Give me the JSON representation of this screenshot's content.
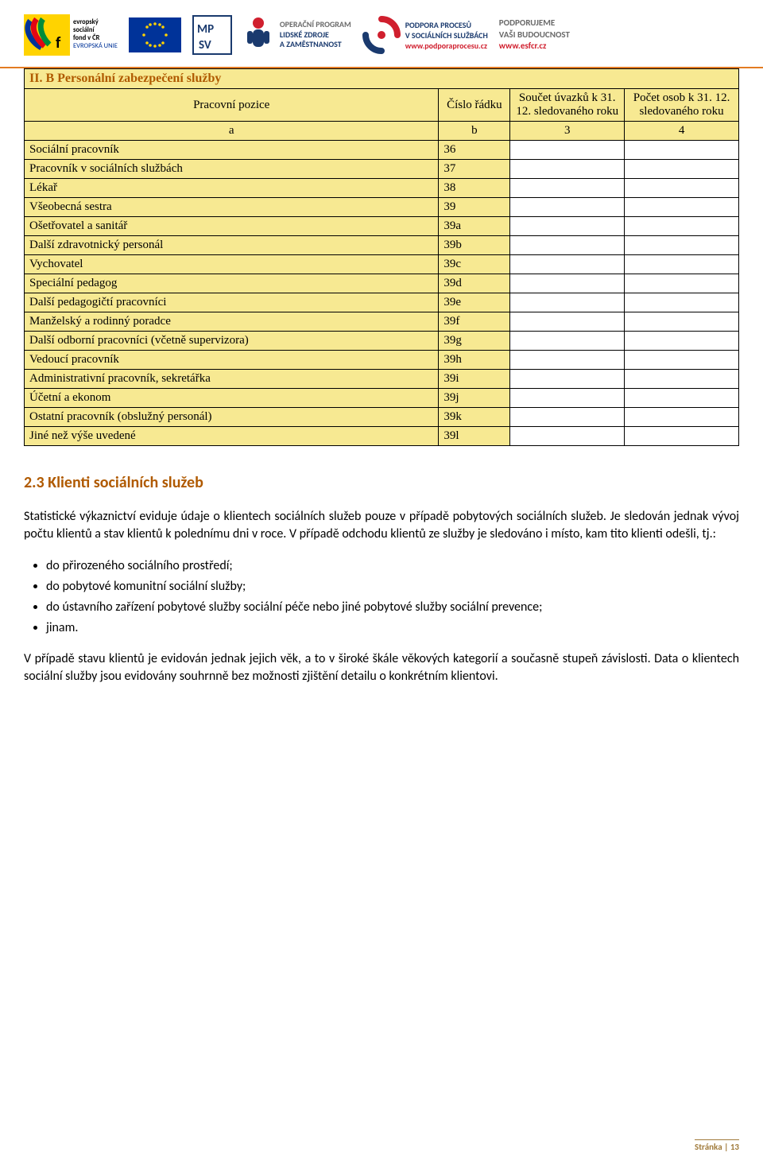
{
  "header": {
    "logos": {
      "esf": {
        "top": "evropský",
        "mid": "sociální",
        "bot": "fond v ČR",
        "tag": "EVROPSKÁ UNIE"
      },
      "mpsv": "MP SV",
      "op": {
        "l1": "OPERAČNÍ PROGRAM",
        "l2": "LIDSKÉ ZDROJE",
        "l3": "A ZAMĚSTNANOST"
      },
      "podpora": {
        "l1": "PODPORA PROCESŮ",
        "l2": "V SOCIÁLNÍCH SLUŽBÁCH",
        "l3": "www.podporaprocesu.cz"
      },
      "support": {
        "l1": "PODPORUJEME",
        "l2": "VAŠI BUDOUCNOST",
        "l3": "www.esfcr.cz"
      }
    }
  },
  "table": {
    "title": "II. B Personální zabezpečení služby",
    "columns": {
      "c1": "Pracovní pozice",
      "c2": "Číslo řádku",
      "c3": "Součet úvazků k 31. 12. sledovaného roku",
      "c4": "Počet osob k 31. 12. sledovaného roku"
    },
    "subheader": {
      "a": "a",
      "b": "b",
      "c": "3",
      "d": "4"
    },
    "rows": [
      {
        "pos": "Sociální pracovník",
        "num": "36"
      },
      {
        "pos": "Pracovník v sociálních službách",
        "num": "37"
      },
      {
        "pos": "Lékař",
        "num": "38"
      },
      {
        "pos": "Všeobecná sestra",
        "num": "39"
      },
      {
        "pos": "Ošetřovatel a sanitář",
        "num": "39a"
      },
      {
        "pos": "Další zdravotnický personál",
        "num": "39b"
      },
      {
        "pos": "Vychovatel",
        "num": "39c"
      },
      {
        "pos": "Speciální pedagog",
        "num": "39d"
      },
      {
        "pos": "Další pedagogičtí pracovníci",
        "num": "39e"
      },
      {
        "pos": "Manželský a rodinný poradce",
        "num": "39f"
      },
      {
        "pos": "Další odborní pracovníci (včetně supervizora)",
        "num": "39g"
      },
      {
        "pos": "Vedoucí pracovník",
        "num": "39h"
      },
      {
        "pos": "Administrativní pracovník, sekretářka",
        "num": "39i"
      },
      {
        "pos": "Účetní a ekonom",
        "num": "39j"
      },
      {
        "pos": "Ostatní pracovník (obslužný personál)",
        "num": "39k"
      },
      {
        "pos": "Jiné než výše uvedené",
        "num": "39l"
      }
    ]
  },
  "section": {
    "heading": "2.3 Klienti sociálních služeb",
    "p1": "Statistické výkaznictví eviduje údaje o klientech sociálních služeb pouze v případě pobytových sociálních služeb. Je sledován jednak vývoj počtu klientů a stav klientů k polednímu dni v roce. V případě odchodu klientů ze služby je sledováno i místo, kam tito klienti odešli, tj.:",
    "bullets": [
      "do přirozeného sociálního prostředí;",
      "do pobytové komunitní sociální služby;",
      "do ústavního zařízení pobytové služby sociální péče nebo jiné pobytové služby sociální prevence;",
      "jinam."
    ],
    "p2": "V případě stavu klientů je evidován jednak jejich věk, a to v široké škále věkových kategorií a současně stupeň závislosti. Data o klientech sociální služby jsou evidovány souhrnně bez možnosti zjištění detailu o konkrétním klientovi."
  },
  "footer": {
    "label": "Stránka",
    "page": "13"
  },
  "colors": {
    "table_bg": "#f7e992",
    "heading": "#b05a00",
    "accent_line": "#e37b22",
    "footer": "#a07a3a"
  }
}
